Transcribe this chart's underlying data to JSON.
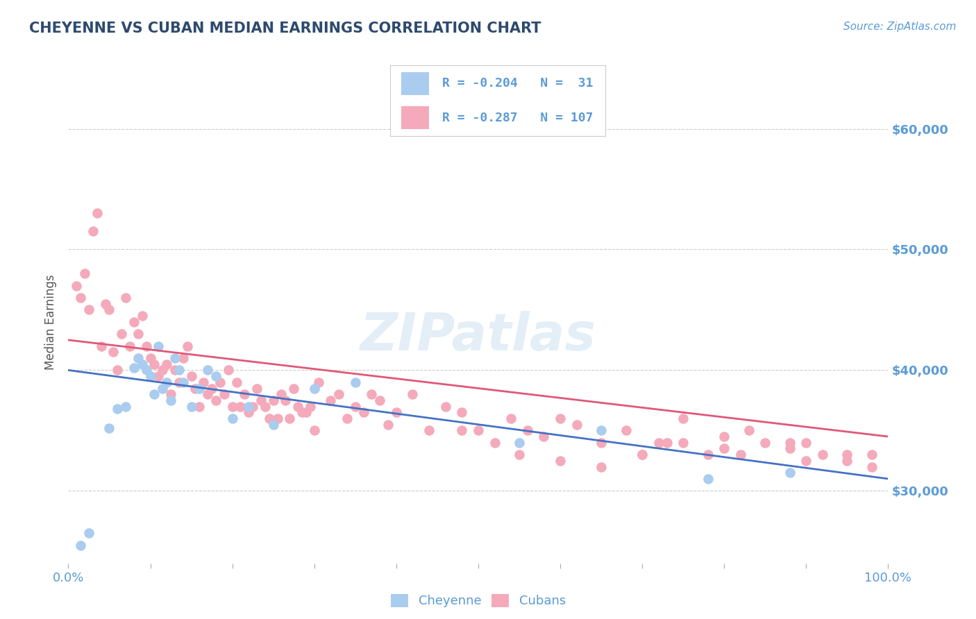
{
  "title": "CHEYENNE VS CUBAN MEDIAN EARNINGS CORRELATION CHART",
  "source": "Source: ZipAtlas.com",
  "ylabel": "Median Earnings",
  "xlim": [
    0,
    100
  ],
  "ylim": [
    24000,
    64000
  ],
  "yticks": [
    30000,
    40000,
    50000,
    60000
  ],
  "ytick_labels": [
    "$30,000",
    "$40,000",
    "$50,000",
    "$60,000"
  ],
  "xtick_positions": [
    0,
    10,
    20,
    30,
    40,
    50,
    60,
    70,
    80,
    90,
    100
  ],
  "xtick_labels": [
    "0.0%",
    "",
    "",
    "",
    "",
    "",
    "",
    "",
    "",
    "",
    "100.0%"
  ],
  "title_color": "#2e4a6e",
  "axis_color": "#5b9bd5",
  "legend_r1": "R = -0.204",
  "legend_n1": "N =  31",
  "legend_r2": "R = -0.287",
  "legend_n2": "N = 107",
  "cheyenne_color": "#aaccee",
  "cubans_color": "#f4aabb",
  "line_cheyenne_color": "#4472c4",
  "line_cubans_color": "#e05878",
  "background_color": "#ffffff",
  "cheyenne_x": [
    1.5,
    2.5,
    5,
    6,
    7,
    8,
    8.5,
    9,
    9.5,
    10,
    10.5,
    11,
    11.5,
    12,
    12.5,
    13,
    13.5,
    14,
    15,
    16,
    17,
    18,
    20,
    22,
    25,
    30,
    35,
    55,
    65,
    78,
    88
  ],
  "cheyenne_y": [
    25500,
    26500,
    35200,
    36800,
    37000,
    40200,
    41000,
    40500,
    40000,
    39500,
    38000,
    42000,
    38500,
    39000,
    37500,
    41000,
    40000,
    39000,
    37000,
    38500,
    40000,
    39500,
    36000,
    37000,
    35500,
    38500,
    39000,
    34000,
    35000,
    31000,
    31500
  ],
  "cubans_x": [
    1,
    1.5,
    2,
    2.5,
    3,
    3.5,
    4,
    4.5,
    5,
    5.5,
    6,
    6.5,
    7,
    7.5,
    8,
    8.5,
    9,
    9.5,
    10,
    10.5,
    11,
    11.5,
    12,
    12.5,
    13,
    13.5,
    14,
    14.5,
    15,
    15.5,
    16,
    16.5,
    17,
    17.5,
    18,
    18.5,
    19,
    19.5,
    20,
    20.5,
    21,
    21.5,
    22,
    22.5,
    23,
    23.5,
    24,
    24.5,
    25,
    25.5,
    26,
    26.5,
    27,
    27.5,
    28,
    28.5,
    29,
    29.5,
    30,
    30.5,
    32,
    33,
    34,
    35,
    36,
    37,
    38,
    39,
    40,
    42,
    44,
    46,
    48,
    50,
    52,
    54,
    56,
    58,
    60,
    62,
    65,
    68,
    70,
    73,
    75,
    78,
    80,
    83,
    85,
    88,
    90,
    55,
    48,
    65,
    72,
    80,
    88,
    92,
    95,
    98,
    60,
    70,
    75,
    82,
    90,
    95,
    98
  ],
  "cubans_y": [
    47000,
    46000,
    48000,
    45000,
    51500,
    53000,
    42000,
    45500,
    45000,
    41500,
    40000,
    43000,
    46000,
    42000,
    44000,
    43000,
    44500,
    42000,
    41000,
    40500,
    39500,
    40000,
    40500,
    38000,
    40000,
    39000,
    41000,
    42000,
    39500,
    38500,
    37000,
    39000,
    38000,
    38500,
    37500,
    39000,
    38000,
    40000,
    37000,
    39000,
    37000,
    38000,
    36500,
    37000,
    38500,
    37500,
    37000,
    36000,
    37500,
    36000,
    38000,
    37500,
    36000,
    38500,
    37000,
    36500,
    36500,
    37000,
    35000,
    39000,
    37500,
    38000,
    36000,
    37000,
    36500,
    38000,
    37500,
    35500,
    36500,
    38000,
    35000,
    37000,
    36500,
    35000,
    34000,
    36000,
    35000,
    34500,
    36000,
    35500,
    34000,
    35000,
    33000,
    34000,
    36000,
    33000,
    34500,
    35000,
    34000,
    33500,
    34000,
    33000,
    35000,
    32000,
    34000,
    33500,
    34000,
    33000,
    32500,
    33000,
    32500,
    33000,
    34000,
    33000,
    32500,
    33000,
    32000
  ]
}
